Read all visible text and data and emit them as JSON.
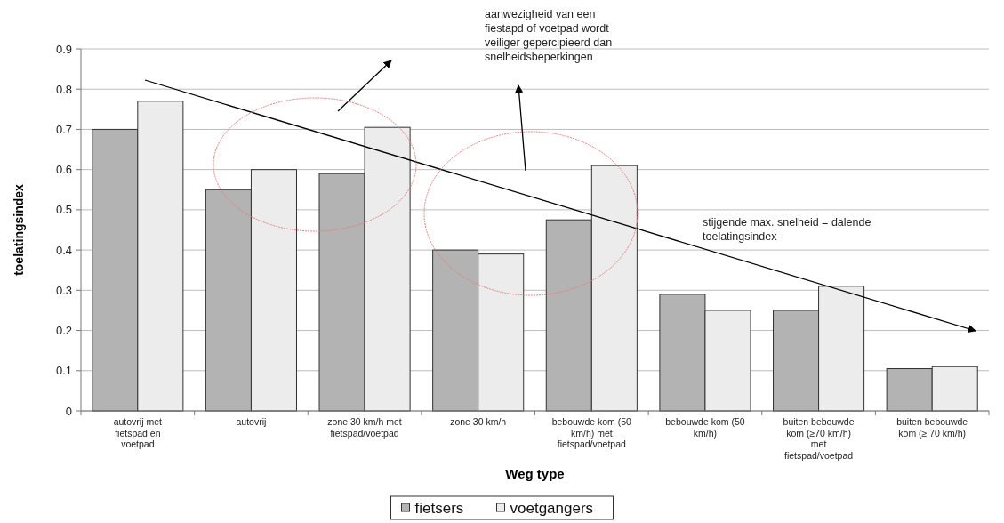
{
  "chart_data": {
    "type": "bar",
    "xlabel": "Weg type",
    "ylabel": "toelatingsindex",
    "categories": [
      "autovrij met fietspad en voetpad",
      "autovrij",
      "zone 30 km/h met fietspad/voetpad",
      "zone 30 km/h",
      "bebouwde kom (50 km/h) met fietspad/voetpad",
      "bebouwde kom (50 km/h)",
      "buiten bebouwde kom (≥70 km/h) met fietspad/voetpad",
      "buiten bebouwde kom (≥ 70 km/h)"
    ],
    "series": [
      {
        "name": "fietsers",
        "color": "#b3b3b3",
        "values": [
          0.7,
          0.55,
          0.59,
          0.4,
          0.475,
          0.29,
          0.25,
          0.105
        ]
      },
      {
        "name": "voetgangers",
        "color": "#ececec",
        "values": [
          0.77,
          0.6,
          0.705,
          0.39,
          0.61,
          0.25,
          0.31,
          0.11
        ]
      }
    ],
    "ylim": [
      0,
      0.9
    ],
    "yticks": [
      0,
      0.1,
      0.2,
      0.3,
      0.4,
      0.5,
      0.6,
      0.7,
      0.8,
      0.9
    ],
    "grid": "y",
    "legend": "bottom",
    "annotations": [
      "aanwezigheid van een fiestapd of voetpad wordt veiliger gepercipieerd dan snelheidsbeperkingen",
      "stijgende max. snelheid = dalende toelatingsindex"
    ]
  }
}
